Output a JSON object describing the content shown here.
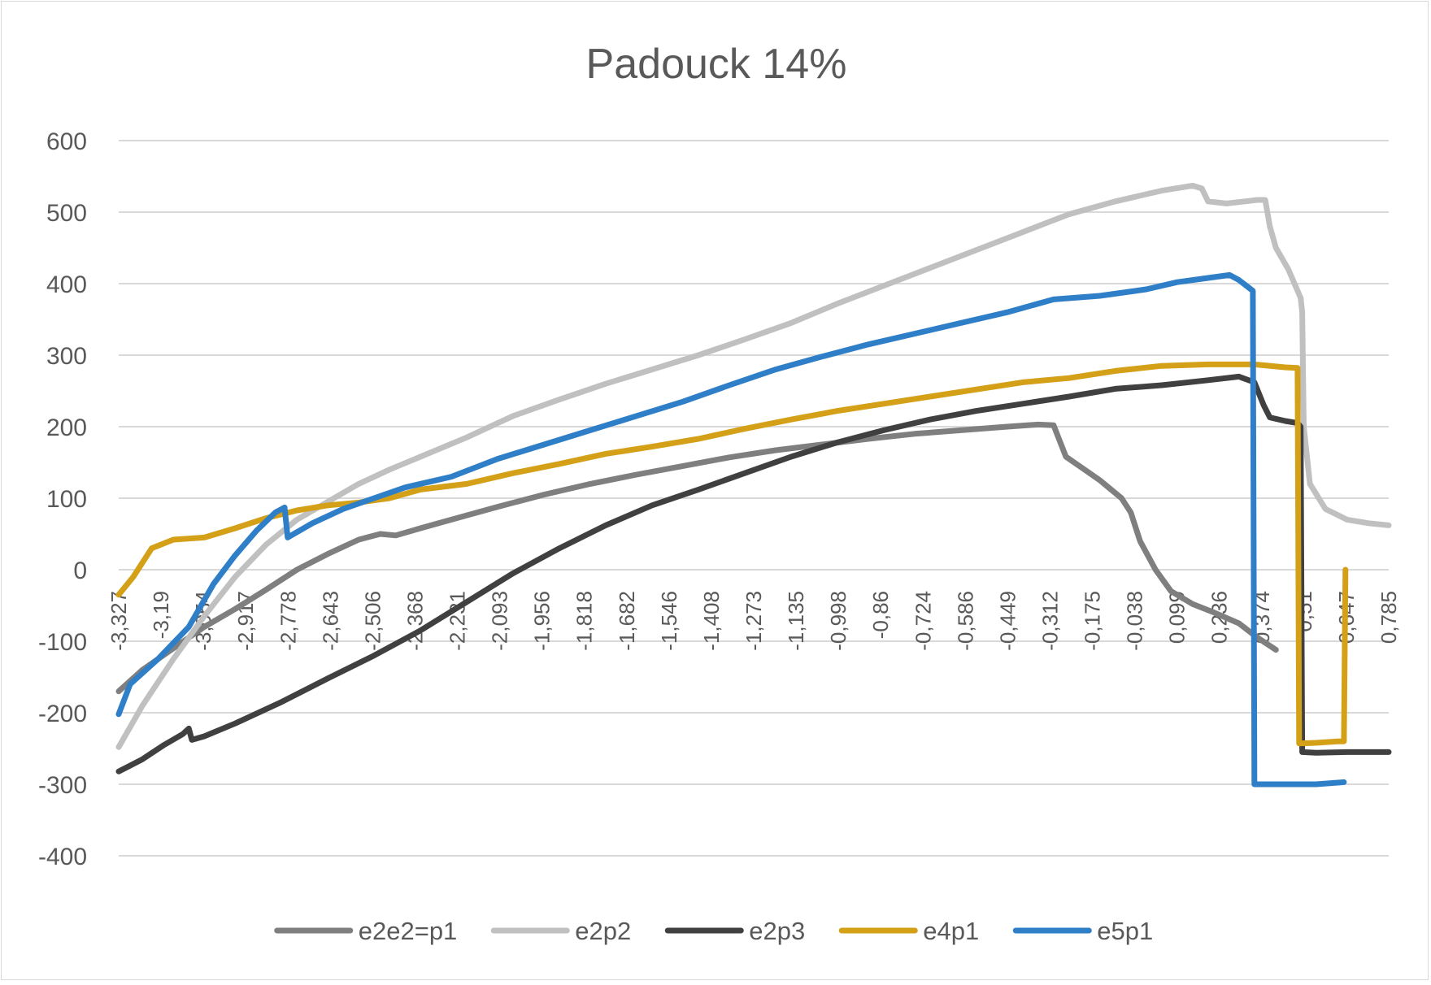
{
  "chart_data": {
    "type": "line",
    "title": "Padouck 14%",
    "xlabel": "",
    "ylabel": "",
    "ylim": [
      -400,
      600
    ],
    "y_ticks": [
      600,
      500,
      400,
      300,
      200,
      100,
      0,
      -100,
      -200,
      -300,
      -400
    ],
    "x_tick_labels": [
      "-3,327",
      "-3,19",
      "-3,054",
      "-2,917",
      "-2,778",
      "-2,643",
      "-2,506",
      "-2,368",
      "-2,231",
      "-2,093",
      "-1,956",
      "-1,818",
      "-1,682",
      "-1,546",
      "-1,408",
      "-1,273",
      "-1,135",
      "-0,998",
      "-0,86",
      "-0,724",
      "-0,586",
      "-0,449",
      "-0,312",
      "-0,175",
      "-0,038",
      "0,099",
      "0,236",
      "0,374",
      "0,51",
      "0,647",
      "0,785"
    ],
    "xlim": [
      -3.327,
      0.785
    ],
    "grid": true,
    "legend_position": "bottom",
    "series": [
      {
        "name": "e2e2=p1",
        "color": "#7f7f7f",
        "points": [
          [
            -3.327,
            -170
          ],
          [
            -3.25,
            -140
          ],
          [
            -3.15,
            -110
          ],
          [
            -3.05,
            -80
          ],
          [
            -2.95,
            -55
          ],
          [
            -2.85,
            -28
          ],
          [
            -2.75,
            0
          ],
          [
            -2.65,
            22
          ],
          [
            -2.55,
            42
          ],
          [
            -2.48,
            50
          ],
          [
            -2.43,
            48
          ],
          [
            -2.35,
            58
          ],
          [
            -2.25,
            70
          ],
          [
            -2.1,
            88
          ],
          [
            -1.95,
            105
          ],
          [
            -1.8,
            120
          ],
          [
            -1.65,
            133
          ],
          [
            -1.5,
            145
          ],
          [
            -1.35,
            157
          ],
          [
            -1.2,
            167
          ],
          [
            -1.05,
            175
          ],
          [
            -0.9,
            183
          ],
          [
            -0.75,
            190
          ],
          [
            -0.6,
            195
          ],
          [
            -0.45,
            200
          ],
          [
            -0.35,
            203
          ],
          [
            -0.3,
            202
          ],
          [
            -0.28,
            180
          ],
          [
            -0.26,
            158
          ],
          [
            -0.2,
            140
          ],
          [
            -0.15,
            125
          ],
          [
            -0.08,
            100
          ],
          [
            -0.05,
            80
          ],
          [
            -0.02,
            40
          ],
          [
            0.03,
            0
          ],
          [
            0.08,
            -30
          ],
          [
            0.15,
            -48
          ],
          [
            0.22,
            -60
          ],
          [
            0.3,
            -75
          ],
          [
            0.36,
            -95
          ],
          [
            0.42,
            -112
          ]
        ]
      },
      {
        "name": "e2p2",
        "color": "#c0c0c0",
        "points": [
          [
            -3.327,
            -248
          ],
          [
            -3.25,
            -190
          ],
          [
            -3.15,
            -125
          ],
          [
            -3.05,
            -65
          ],
          [
            -2.95,
            -10
          ],
          [
            -2.85,
            35
          ],
          [
            -2.75,
            70
          ],
          [
            -2.65,
            95
          ],
          [
            -2.55,
            120
          ],
          [
            -2.45,
            140
          ],
          [
            -2.35,
            158
          ],
          [
            -2.2,
            185
          ],
          [
            -2.05,
            215
          ],
          [
            -1.9,
            238
          ],
          [
            -1.75,
            260
          ],
          [
            -1.6,
            280
          ],
          [
            -1.45,
            300
          ],
          [
            -1.3,
            322
          ],
          [
            -1.15,
            345
          ],
          [
            -1.0,
            372
          ],
          [
            -0.85,
            397
          ],
          [
            -0.7,
            422
          ],
          [
            -0.55,
            447
          ],
          [
            -0.4,
            472
          ],
          [
            -0.25,
            497
          ],
          [
            -0.1,
            515
          ],
          [
            0.05,
            530
          ],
          [
            0.15,
            537
          ],
          [
            0.18,
            533
          ],
          [
            0.2,
            515
          ],
          [
            0.26,
            512
          ],
          [
            0.32,
            515
          ],
          [
            0.36,
            517
          ],
          [
            0.385,
            517
          ],
          [
            0.4,
            480
          ],
          [
            0.42,
            450
          ],
          [
            0.46,
            420
          ],
          [
            0.5,
            380
          ],
          [
            0.505,
            360
          ],
          [
            0.51,
            200
          ],
          [
            0.53,
            120
          ],
          [
            0.58,
            85
          ],
          [
            0.65,
            70
          ],
          [
            0.72,
            65
          ],
          [
            0.785,
            62
          ]
        ]
      },
      {
        "name": "e2p3",
        "color": "#404040",
        "points": [
          [
            -3.327,
            -282
          ],
          [
            -3.25,
            -265
          ],
          [
            -3.18,
            -245
          ],
          [
            -3.12,
            -230
          ],
          [
            -3.1,
            -222
          ],
          [
            -3.09,
            -238
          ],
          [
            -3.05,
            -233
          ],
          [
            -2.95,
            -215
          ],
          [
            -2.8,
            -185
          ],
          [
            -2.65,
            -152
          ],
          [
            -2.5,
            -120
          ],
          [
            -2.35,
            -85
          ],
          [
            -2.2,
            -45
          ],
          [
            -2.05,
            -5
          ],
          [
            -1.9,
            30
          ],
          [
            -1.75,
            62
          ],
          [
            -1.6,
            90
          ],
          [
            -1.45,
            112
          ],
          [
            -1.3,
            135
          ],
          [
            -1.15,
            158
          ],
          [
            -1.0,
            178
          ],
          [
            -0.85,
            195
          ],
          [
            -0.7,
            210
          ],
          [
            -0.55,
            222
          ],
          [
            -0.4,
            232
          ],
          [
            -0.25,
            242
          ],
          [
            -0.1,
            253
          ],
          [
            0.05,
            258
          ],
          [
            0.2,
            265
          ],
          [
            0.3,
            270
          ],
          [
            0.35,
            262
          ],
          [
            0.38,
            230
          ],
          [
            0.4,
            213
          ],
          [
            0.45,
            208
          ],
          [
            0.49,
            205
          ],
          [
            0.5,
            200
          ],
          [
            0.505,
            -255
          ],
          [
            0.55,
            -256
          ],
          [
            0.65,
            -255
          ],
          [
            0.785,
            -255
          ]
        ]
      },
      {
        "name": "e4p1",
        "color": "#d4a017",
        "points": [
          [
            -3.327,
            -35
          ],
          [
            -3.28,
            -10
          ],
          [
            -3.22,
            30
          ],
          [
            -3.15,
            42
          ],
          [
            -3.05,
            45
          ],
          [
            -2.95,
            58
          ],
          [
            -2.85,
            72
          ],
          [
            -2.75,
            83
          ],
          [
            -2.65,
            90
          ],
          [
            -2.55,
            94
          ],
          [
            -2.45,
            100
          ],
          [
            -2.35,
            112
          ],
          [
            -2.2,
            120
          ],
          [
            -2.05,
            135
          ],
          [
            -1.9,
            148
          ],
          [
            -1.75,
            162
          ],
          [
            -1.6,
            172
          ],
          [
            -1.45,
            183
          ],
          [
            -1.3,
            197
          ],
          [
            -1.15,
            210
          ],
          [
            -1.0,
            222
          ],
          [
            -0.85,
            232
          ],
          [
            -0.7,
            242
          ],
          [
            -0.55,
            252
          ],
          [
            -0.4,
            262
          ],
          [
            -0.25,
            268
          ],
          [
            -0.1,
            278
          ],
          [
            0.05,
            285
          ],
          [
            0.2,
            287
          ],
          [
            0.35,
            287
          ],
          [
            0.45,
            283
          ],
          [
            0.49,
            282
          ],
          [
            0.495,
            -243
          ],
          [
            0.55,
            -242
          ],
          [
            0.62,
            -240
          ],
          [
            0.64,
            -240
          ],
          [
            0.645,
            0
          ]
        ]
      },
      {
        "name": "e5p1",
        "color": "#2f7fc8",
        "points": [
          [
            -3.327,
            -202
          ],
          [
            -3.29,
            -160
          ],
          [
            -3.2,
            -125
          ],
          [
            -3.1,
            -80
          ],
          [
            -3.02,
            -20
          ],
          [
            -2.95,
            20
          ],
          [
            -2.88,
            55
          ],
          [
            -2.82,
            80
          ],
          [
            -2.79,
            87
          ],
          [
            -2.78,
            45
          ],
          [
            -2.7,
            65
          ],
          [
            -2.6,
            85
          ],
          [
            -2.5,
            100
          ],
          [
            -2.4,
            115
          ],
          [
            -2.25,
            130
          ],
          [
            -2.1,
            155
          ],
          [
            -1.95,
            175
          ],
          [
            -1.8,
            195
          ],
          [
            -1.65,
            215
          ],
          [
            -1.5,
            235
          ],
          [
            -1.35,
            258
          ],
          [
            -1.2,
            280
          ],
          [
            -1.05,
            298
          ],
          [
            -0.9,
            315
          ],
          [
            -0.75,
            330
          ],
          [
            -0.6,
            345
          ],
          [
            -0.45,
            360
          ],
          [
            -0.3,
            378
          ],
          [
            -0.15,
            383
          ],
          [
            0.0,
            392
          ],
          [
            0.1,
            402
          ],
          [
            0.2,
            408
          ],
          [
            0.27,
            412
          ],
          [
            0.3,
            405
          ],
          [
            0.345,
            390
          ],
          [
            0.35,
            -300
          ],
          [
            0.45,
            -300
          ],
          [
            0.55,
            -300
          ],
          [
            0.64,
            -297
          ]
        ]
      }
    ]
  }
}
